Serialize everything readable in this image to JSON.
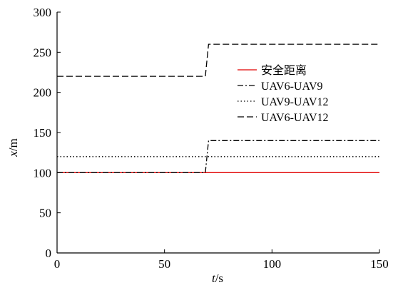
{
  "chart_data": {
    "type": "line",
    "xlabel": {
      "var": "t",
      "unit": "/s"
    },
    "ylabel": {
      "var": "x",
      "unit": "/m"
    },
    "xlim": [
      0,
      150
    ],
    "ylim": [
      0,
      300
    ],
    "xticks": [
      0,
      50,
      100,
      150
    ],
    "yticks": [
      0,
      50,
      100,
      150,
      200,
      250,
      300
    ],
    "grid": false,
    "legend_position": "right-upper",
    "series": [
      {
        "name": "安全距离",
        "style": "solid",
        "color": "#e00000",
        "points": [
          [
            0,
            100
          ],
          [
            150,
            100
          ]
        ]
      },
      {
        "name": "UAV6-UAV9",
        "style": "dashdot",
        "color": "#000000",
        "points": [
          [
            0,
            100
          ],
          [
            69,
            100
          ],
          [
            70.5,
            140
          ],
          [
            150,
            140
          ]
        ]
      },
      {
        "name": "UAV9-UAV12",
        "style": "dotted",
        "color": "#000000",
        "points": [
          [
            0,
            120
          ],
          [
            150,
            120
          ]
        ]
      },
      {
        "name": "UAV6-UAV12",
        "style": "dashed",
        "color": "#000000",
        "points": [
          [
            0,
            220
          ],
          [
            69,
            220
          ],
          [
            70.5,
            260
          ],
          [
            150,
            260
          ]
        ]
      }
    ]
  }
}
